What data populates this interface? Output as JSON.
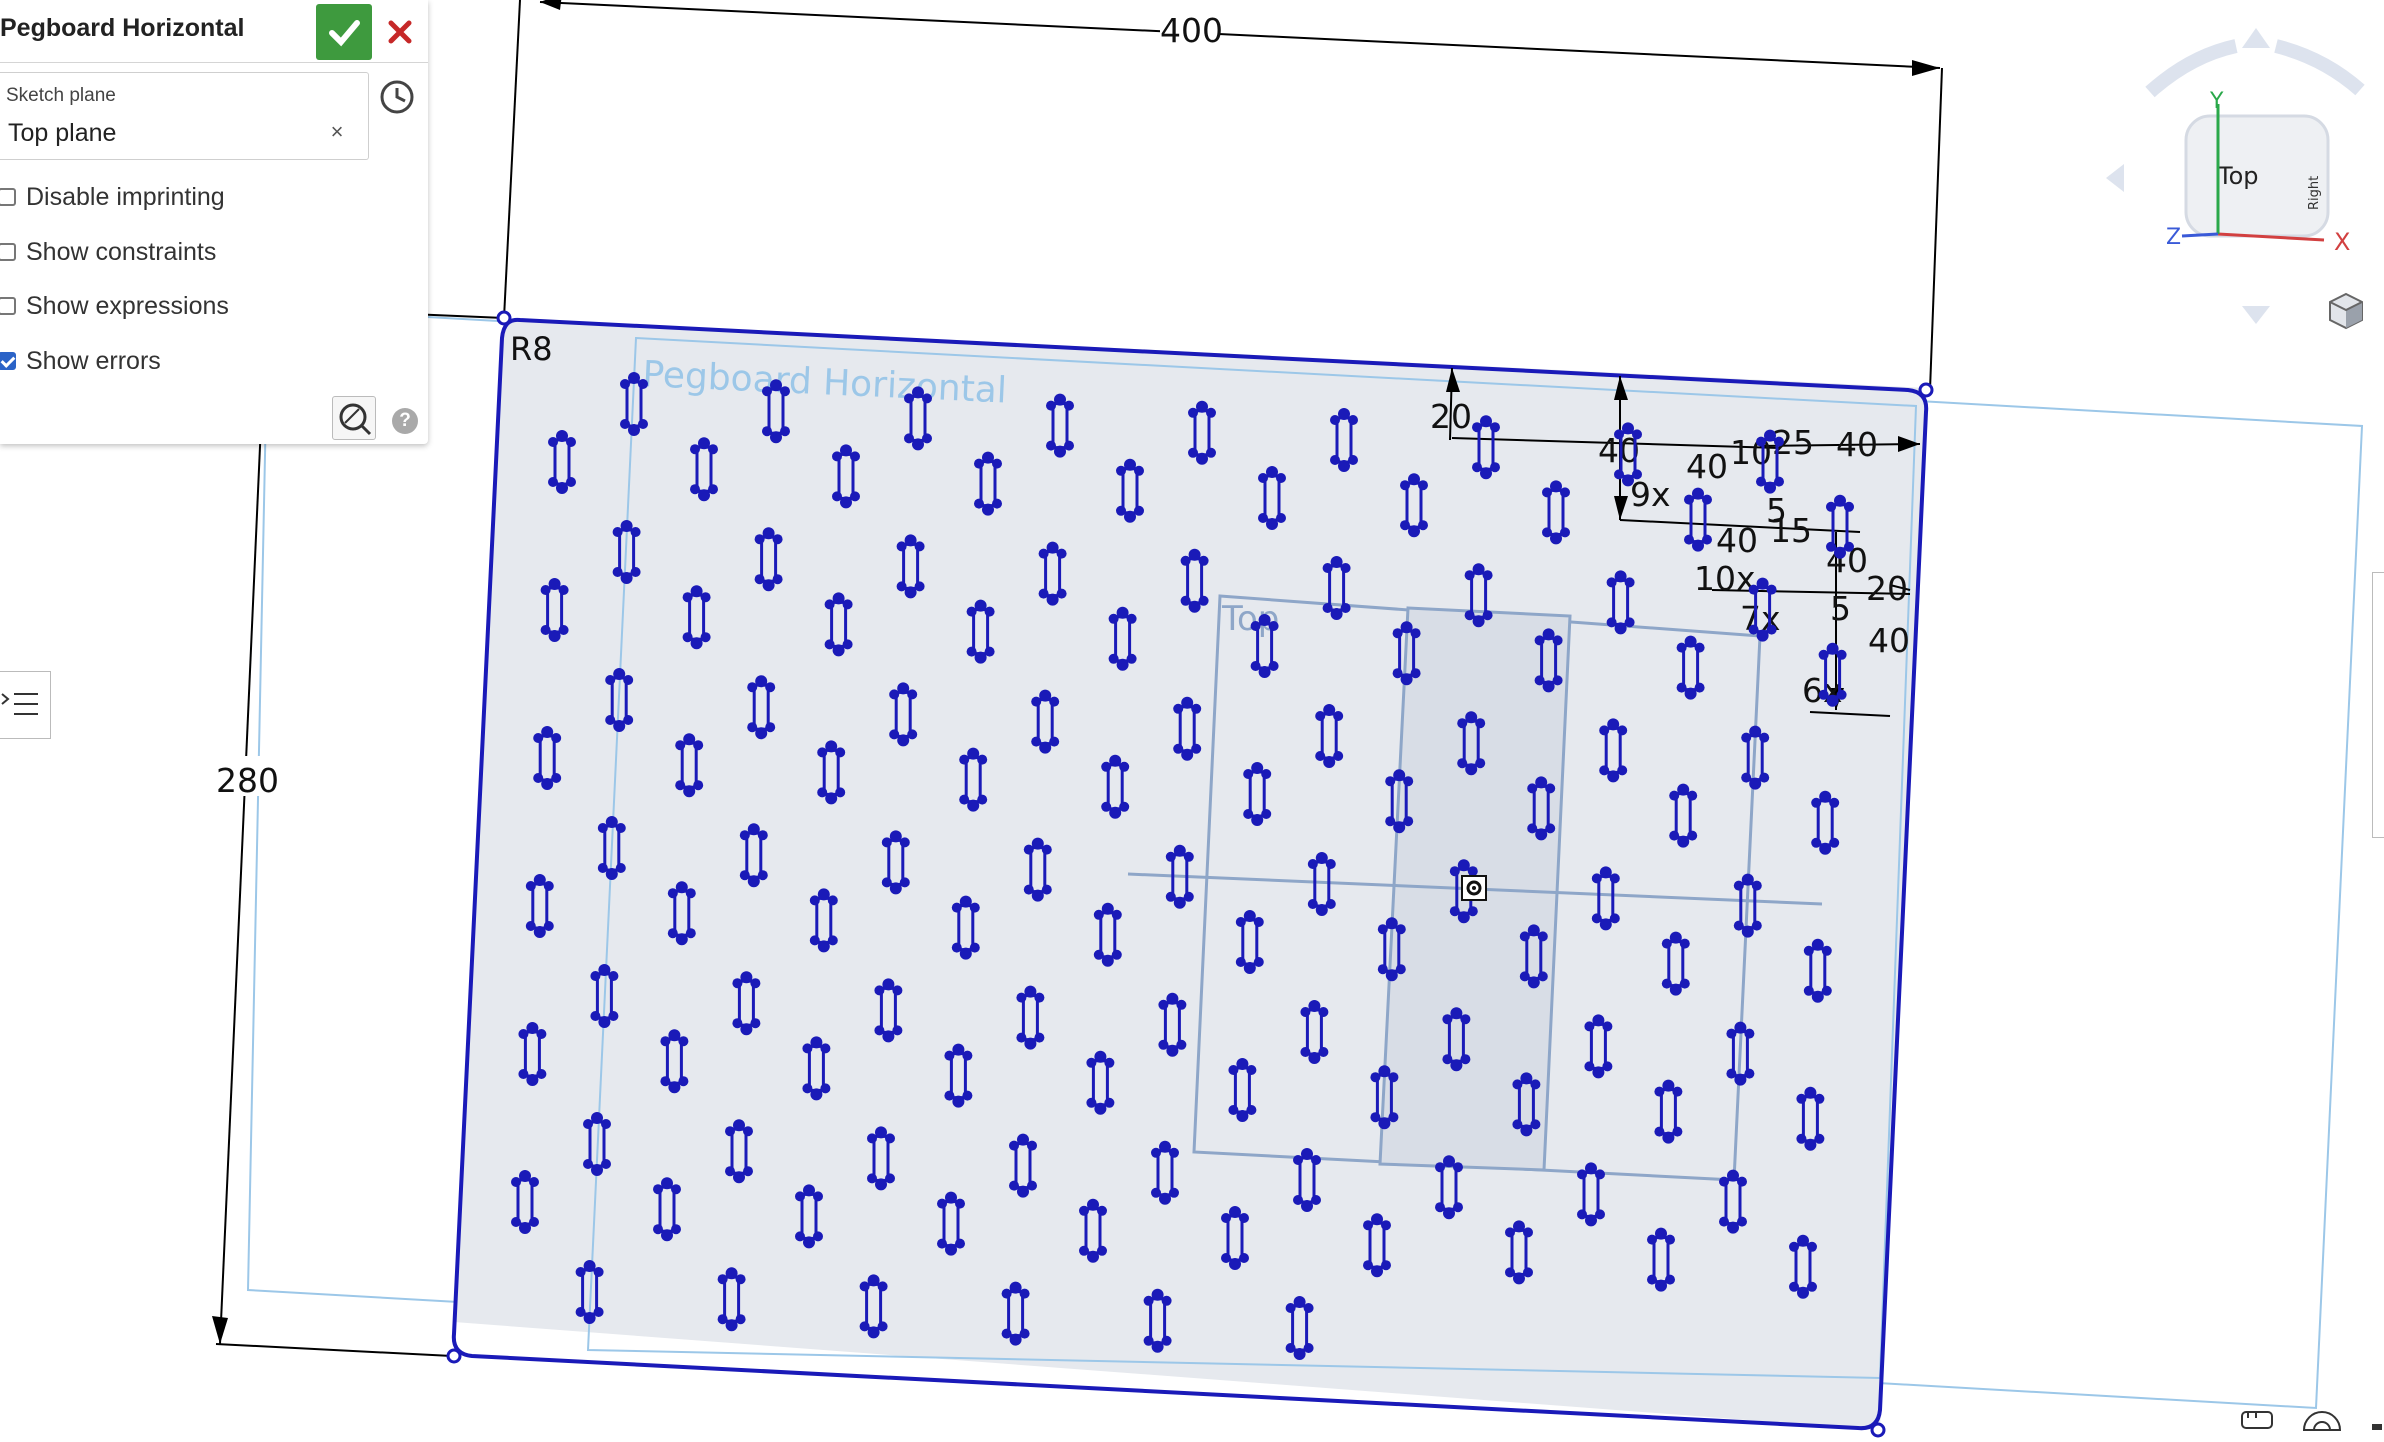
{
  "feature_panel": {
    "title": "Pegboard Horizontal",
    "sketch_plane_label": "Sketch plane",
    "sketch_plane_value": "Top plane",
    "clear_glyph": "×",
    "options": [
      {
        "label": "Disable imprinting",
        "checked": false
      },
      {
        "label": "Show constraints",
        "checked": false
      },
      {
        "label": "Show expressions",
        "checked": false
      },
      {
        "label": "Show errors",
        "checked": true
      }
    ],
    "help_glyph": "?"
  },
  "viewport": {
    "sketch_name": "Pegboard Horizontal",
    "plane_label": "Top",
    "fillet_label": "R8",
    "dimensions": {
      "width": "400",
      "height": "280",
      "d20_top": "20",
      "d40_a": "40",
      "d40_b": "40",
      "d10_a": "10",
      "d25": "25",
      "d40_c": "40",
      "d5": "5",
      "d5b": "5",
      "d15": "15",
      "d40_d": "40",
      "d40_e": "40",
      "d20_right": "20",
      "d40_right": "40",
      "count_9x": "9x",
      "count_10x": "10x",
      "count_7x": "7x",
      "count_6x": "6x"
    }
  },
  "view_cube": {
    "face_top": "Top",
    "face_right": "Right",
    "axis_x": "X",
    "axis_y": "Y",
    "axis_z": "Z"
  },
  "colors": {
    "sketch_blue": "#1a1ab8",
    "plane_blue": "#7fb6de",
    "fill": "#e4e7ec",
    "ok_green": "#3e9a3e",
    "cancel_red": "#c62828",
    "checkbox_blue": "#2b63c7"
  },
  "icons": [
    "checkmark-icon",
    "close-icon",
    "clock-history-icon",
    "sketch-inspect-icon",
    "help-icon",
    "list-icon",
    "view-cube-icon",
    "measure-icon",
    "protractor-icon"
  ]
}
